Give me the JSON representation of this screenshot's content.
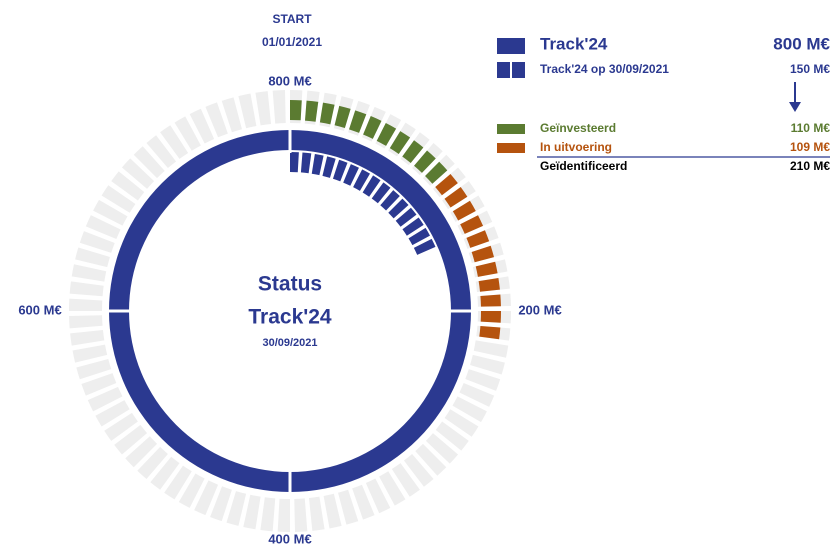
{
  "start": {
    "label": "START",
    "date": "01/01/2021"
  },
  "center": {
    "line1": "Status",
    "line2": "Track'24",
    "date": "30/09/2021"
  },
  "chart_data": {
    "type": "radial-progress",
    "ylim": [
      0,
      800
    ],
    "yticks": [
      {
        "value": 800,
        "label": "800 M€"
      },
      {
        "value": 200,
        "label": "200 M€"
      },
      {
        "value": 400,
        "label": "400 M€"
      },
      {
        "value": 600,
        "label": "600 M€"
      }
    ],
    "series": [
      {
        "name": "Track'24",
        "color": "#2b3990",
        "values": [
          800
        ],
        "value_labels": [
          "800 M€"
        ]
      },
      {
        "name": "Track'24 op 30/09/2021",
        "color": "#2b3990",
        "values": [
          150
        ],
        "value_labels": [
          "150 M€"
        ]
      },
      {
        "name": "Geïnvesteerd",
        "color": "#5b7b31",
        "values": [
          110
        ],
        "value_labels": [
          "110 M€"
        ]
      },
      {
        "name": "In uitvoering",
        "color": "#b5530e",
        "values": [
          109
        ],
        "value_labels": [
          "109 M€"
        ]
      }
    ],
    "total": {
      "name": "Geïdentificeerd",
      "value": 210,
      "label": "210 M€"
    }
  }
}
